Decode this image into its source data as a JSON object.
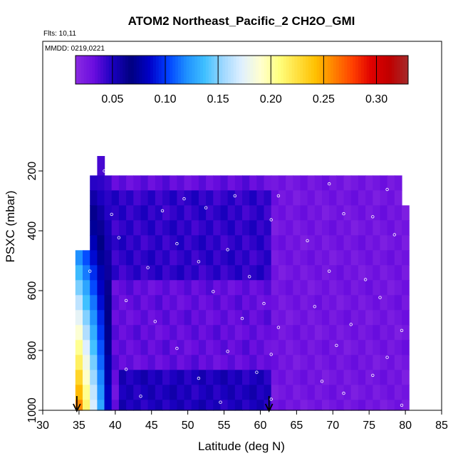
{
  "chart_data": {
    "type": "heatmap",
    "title": "ATOM2 Northeast_Pacific_2 CH2O_GMI",
    "subtitle_flights": "Flts: 10,11",
    "subtitle_dates": "MMDD: 0219,0221",
    "xlabel": "Latitude (deg N)",
    "ylabel": "PSXC (mbar)",
    "xlim": [
      30,
      85
    ],
    "ylim": [
      1000,
      0
    ],
    "x_ticks": [
      "30",
      "35",
      "40",
      "45",
      "50",
      "55",
      "60",
      "65",
      "70",
      "75",
      "80",
      "85"
    ],
    "y_ticks": [
      "200",
      "400",
      "600",
      "800",
      "1000"
    ],
    "colorbar": {
      "range": [
        0.015,
        0.33
      ],
      "ticks": [
        "0.05",
        "0.10",
        "0.15",
        "0.20",
        "0.25",
        "0.30"
      ],
      "colors": [
        "#8a2be2",
        "#6a0ddf",
        "#1a00c0",
        "#000080",
        "#0000c8",
        "#0040ff",
        "#1e90ff",
        "#40c0ff",
        "#a0d8ff",
        "#e0f0ff",
        "#ffffd0",
        "#ffff80",
        "#ffe040",
        "#ffc000",
        "#ff8000",
        "#ff4000",
        "#e00000",
        "#c00000",
        "#a52a2a"
      ]
    },
    "arrows_at_latitude": [
      34.7,
      61.2
    ],
    "grid": {
      "lat_edges": [
        34.5,
        35.5,
        36.5,
        37.5,
        38.5,
        39.5,
        40.5,
        41.5,
        42.5,
        43.5,
        44.5,
        45.5,
        46.5,
        47.5,
        48.5,
        49.5,
        50.5,
        51.5,
        52.5,
        53.5,
        54.5,
        55.5,
        56.5,
        57.5,
        58.5,
        59.5,
        60.5,
        61.5,
        62.5,
        63.5,
        64.5,
        65.5,
        66.5,
        67.5,
        68.5,
        69.5,
        70.5,
        71.5,
        72.5,
        73.5,
        74.5,
        75.5,
        76.5,
        77.5,
        78.5,
        79.5,
        80.5
      ],
      "p_edges": [
        150,
        215,
        265,
        315,
        365,
        415,
        465,
        515,
        565,
        615,
        665,
        715,
        765,
        815,
        865,
        915,
        965,
        1000
      ],
      "profile": [
        0.02,
        0.03,
        0.04,
        0.05,
        0.05,
        0.05,
        0.05,
        0.03,
        0.03,
        0.03,
        0.03,
        0.03,
        0.035,
        0.04,
        0.05,
        0.055,
        0.05
      ]
    },
    "sample_points": [
      [
        38.5,
        200
      ],
      [
        49.5,
        293
      ],
      [
        56.5,
        283
      ],
      [
        62.5,
        283
      ],
      [
        69.5,
        243
      ],
      [
        77.5,
        262
      ],
      [
        39.5,
        345
      ],
      [
        46.5,
        333
      ],
      [
        52.5,
        323
      ],
      [
        61.5,
        363
      ],
      [
        71.5,
        343
      ],
      [
        75.5,
        353
      ],
      [
        40.5,
        423
      ],
      [
        48.5,
        443
      ],
      [
        55.5,
        463
      ],
      [
        66.5,
        433
      ],
      [
        78.5,
        413
      ],
      [
        36.5,
        535
      ],
      [
        44.5,
        523
      ],
      [
        51.5,
        503
      ],
      [
        58.5,
        553
      ],
      [
        69.5,
        535
      ],
      [
        74.5,
        563
      ],
      [
        41.5,
        633
      ],
      [
        53.5,
        603
      ],
      [
        60.5,
        643
      ],
      [
        67.5,
        653
      ],
      [
        76.5,
        623
      ],
      [
        45.5,
        703
      ],
      [
        57.5,
        693
      ],
      [
        62.5,
        723
      ],
      [
        72.5,
        713
      ],
      [
        79.5,
        733
      ],
      [
        48.5,
        793
      ],
      [
        55.5,
        803
      ],
      [
        61.5,
        813
      ],
      [
        70.5,
        783
      ],
      [
        77.5,
        823
      ],
      [
        41.5,
        863
      ],
      [
        51.5,
        893
      ],
      [
        59.5,
        873
      ],
      [
        68.5,
        903
      ],
      [
        75.5,
        883
      ],
      [
        43.5,
        953
      ],
      [
        54.5,
        973
      ],
      [
        61.5,
        963
      ],
      [
        71.5,
        943
      ],
      [
        79.5,
        983
      ]
    ],
    "value_range_shown": [
      0.015,
      0.33
    ]
  }
}
